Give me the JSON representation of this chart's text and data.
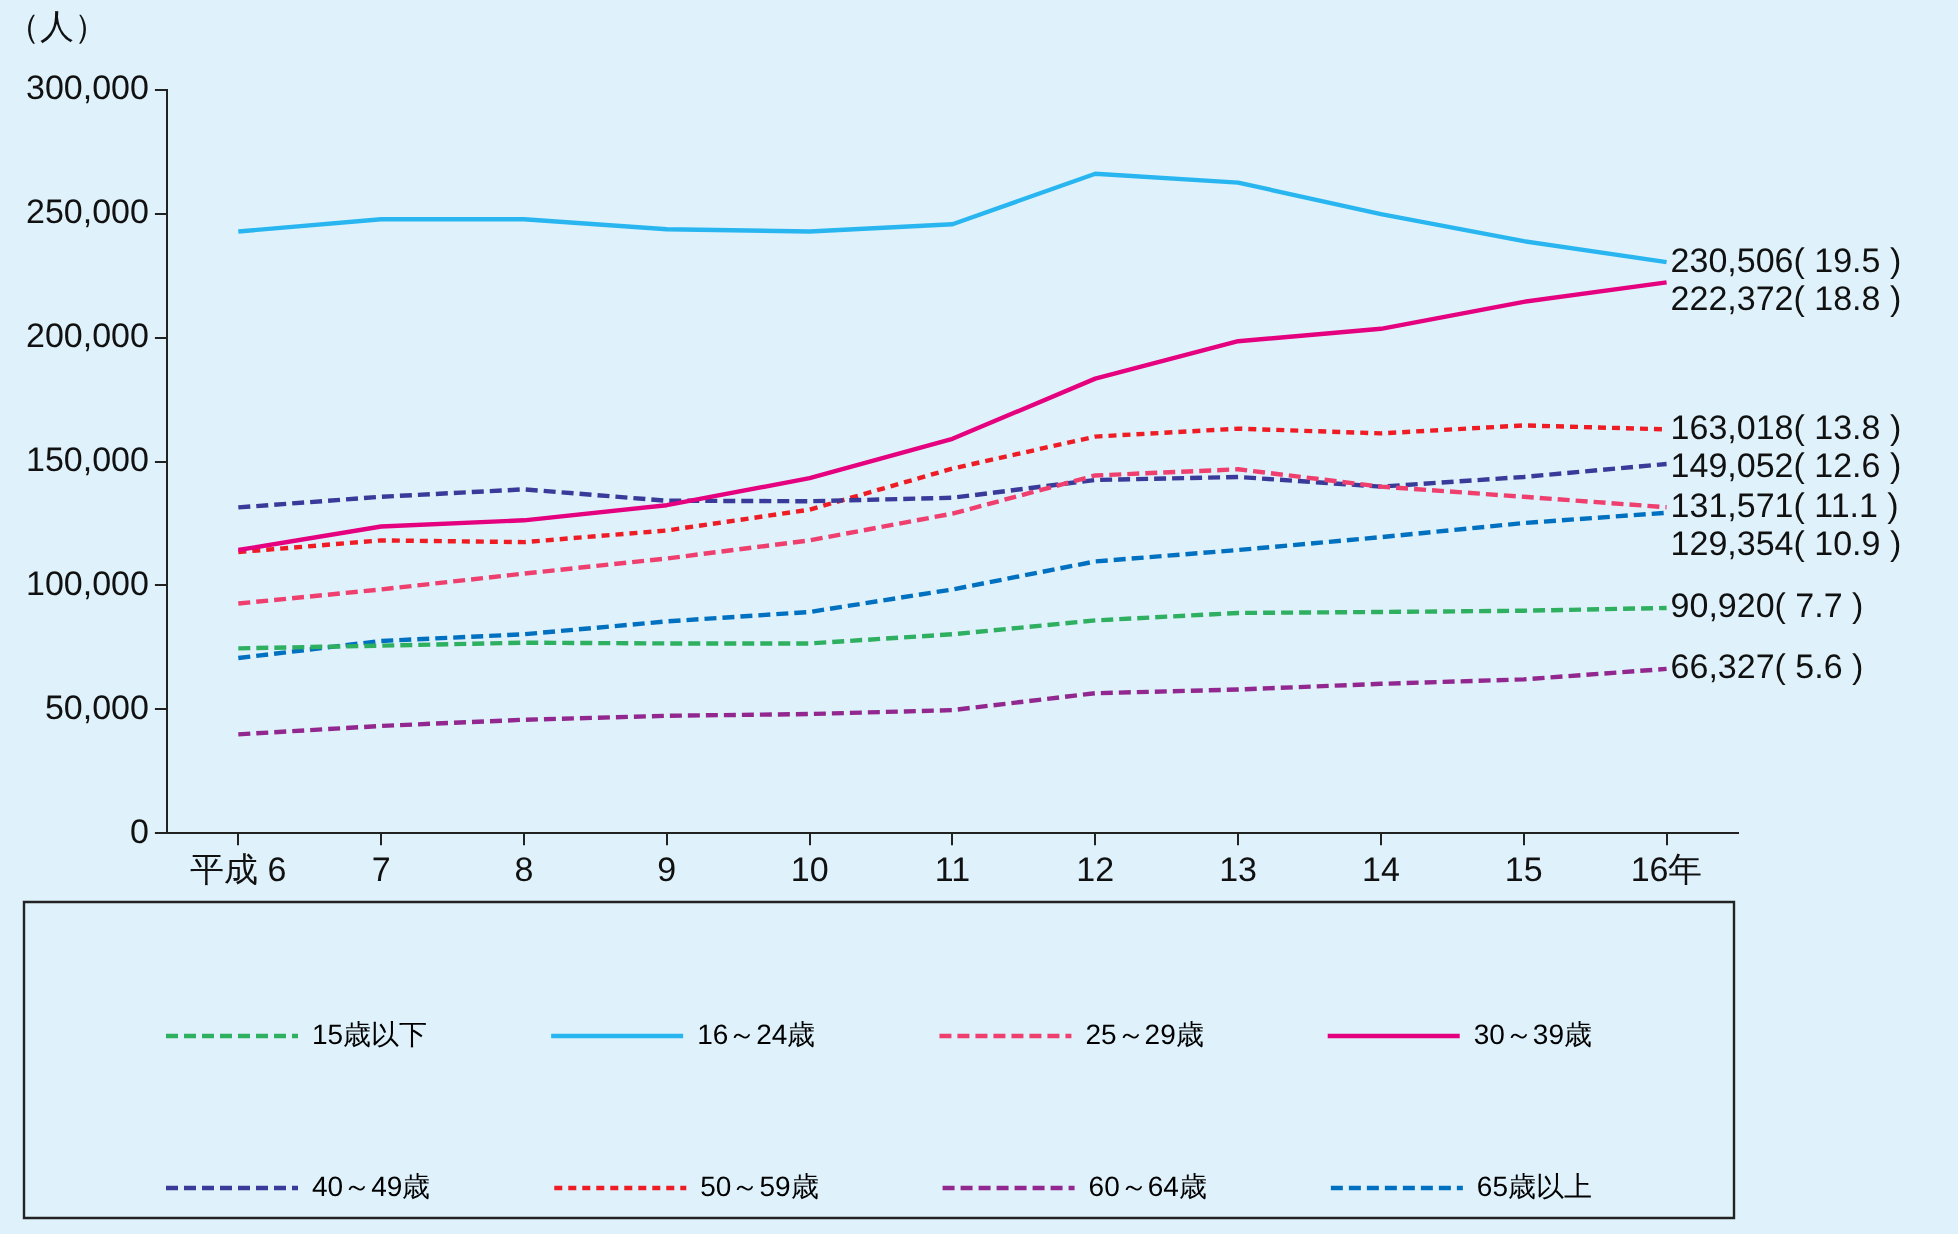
{
  "chart_data": {
    "type": "line",
    "ylabel": "（人）",
    "categories": [
      "平成 6",
      "7",
      "8",
      "9",
      "10",
      "11",
      "12",
      "13",
      "14",
      "15",
      "16年"
    ],
    "ylim": [
      0,
      300000
    ],
    "yticks": [
      0,
      {
        "value": 50000,
        "label": "50,000"
      },
      {
        "value": 100000,
        "label": "100,000"
      },
      {
        "value": 150000,
        "label": "150,000"
      },
      {
        "value": 200000,
        "label": "200,000"
      },
      {
        "value": 250000,
        "label": "250,000"
      },
      {
        "value": 300000,
        "label": "300,000"
      }
    ],
    "grid": false,
    "legend": "bottom",
    "marker": "none",
    "series": [
      {
        "name": "15歳以下",
        "color": "#2eb060",
        "line_style": "dashed",
        "values": [
          74600,
          75700,
          76900,
          76600,
          76600,
          80300,
          85900,
          88900,
          89300,
          89800,
          90920
        ],
        "value_labels": [
          null,
          null,
          null,
          null,
          null,
          null,
          null,
          null,
          null,
          null,
          "90,920( 7.7 )"
        ]
      },
      {
        "name": "16～24歳",
        "color": "#29b6f0",
        "line_style": "solid",
        "values": [
          242900,
          247800,
          247800,
          243800,
          242900,
          245800,
          266200,
          262600,
          249900,
          239000,
          230506
        ],
        "value_labels": [
          null,
          null,
          null,
          null,
          null,
          null,
          null,
          null,
          null,
          null,
          "230,506( 19.5 )"
        ]
      },
      {
        "name": "25～29歳",
        "color": "#ef3f6e",
        "line_style": "dashed",
        "values": [
          92700,
          98400,
          104800,
          110900,
          118200,
          129000,
          144400,
          146900,
          139900,
          135800,
          131571
        ],
        "value_labels": [
          null,
          null,
          null,
          null,
          null,
          null,
          null,
          null,
          null,
          null,
          "131,571( 11.1 )"
        ]
      },
      {
        "name": "30～39歳",
        "color": "#e4007f",
        "line_style": "solid",
        "values": [
          114300,
          123800,
          126300,
          132400,
          143300,
          159200,
          183500,
          198600,
          203600,
          214500,
          222372
        ],
        "value_labels": [
          null,
          null,
          null,
          null,
          null,
          null,
          null,
          null,
          null,
          null,
          "222,372( 18.8 )"
        ]
      },
      {
        "name": "40～49歳",
        "color": "#3a3a9a",
        "line_style": "dashed",
        "values": [
          131500,
          135800,
          138800,
          134200,
          134000,
          135400,
          142600,
          143800,
          139900,
          143800,
          149052
        ],
        "value_labels": [
          null,
          null,
          null,
          null,
          null,
          null,
          null,
          null,
          null,
          null,
          "149,052( 12.6 )"
        ]
      },
      {
        "name": "50～59歳",
        "color": "#ee1c25",
        "line_style": "dotted",
        "values": [
          113500,
          118200,
          117500,
          122200,
          130600,
          147200,
          160100,
          163300,
          161400,
          164600,
          163018
        ],
        "value_labels": [
          null,
          null,
          null,
          null,
          null,
          null,
          null,
          null,
          null,
          null,
          "163,018( 13.8 )"
        ]
      },
      {
        "name": "60～64歳",
        "color": "#92278f",
        "line_style": "dashed",
        "values": [
          39900,
          43300,
          45800,
          47400,
          48100,
          49700,
          56500,
          58000,
          60300,
          62100,
          66327
        ],
        "value_labels": [
          null,
          null,
          null,
          null,
          null,
          null,
          null,
          null,
          null,
          null,
          "66,327( 5.6 )"
        ]
      },
      {
        "name": "65歳以上",
        "color": "#0070c0",
        "line_style": "dashed",
        "values": [
          70700,
          77600,
          80300,
          85500,
          89300,
          98400,
          109700,
          114300,
          119500,
          125200,
          129354
        ],
        "value_labels": [
          null,
          null,
          null,
          null,
          null,
          null,
          null,
          null,
          null,
          null,
          "129,354( 10.9 )"
        ]
      }
    ]
  }
}
